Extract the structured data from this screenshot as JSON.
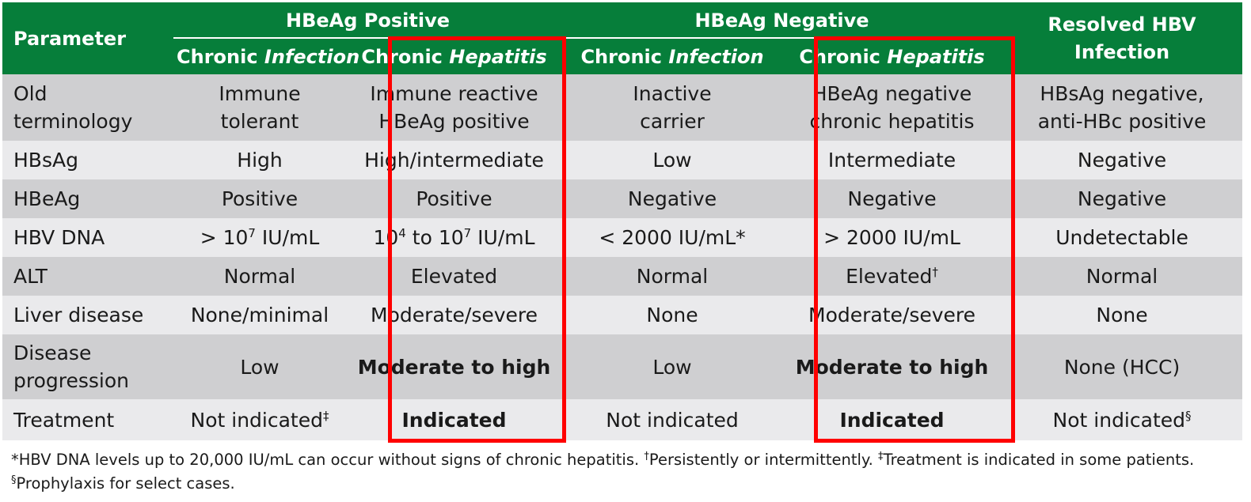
{
  "headers": {
    "parameter": "Parameter",
    "hbeag_positive": "HBeAg Positive",
    "hbeag_negative": "HBeAg Negative",
    "resolved": "Resolved HBV",
    "resolved_line2": "Infection",
    "chronic": "Chronic",
    "infection": "Infection",
    "hepatitis": "Hepatitis"
  },
  "rows": {
    "terminology": {
      "label_l1": "Old",
      "label_l2": "terminology",
      "c1_l1": "Immune",
      "c1_l2": "tolerant",
      "c2_l1": "Immune reactive",
      "c2_l2": "HBeAg positive",
      "c3_l1": "Inactive",
      "c3_l2": "carrier",
      "c4_l1": "HBeAg negative",
      "c4_l2": "chronic hepatitis",
      "c5_l1": "HBsAg negative,",
      "c5_l2": "anti-HBc positive"
    },
    "hbsag": {
      "label": "HBsAg",
      "c1": "High",
      "c2": "High/intermediate",
      "c3": "Low",
      "c4": "Intermediate",
      "c5": "Negative"
    },
    "hbeag": {
      "label": "HBeAg",
      "c1": "Positive",
      "c2": "Positive",
      "c3": "Negative",
      "c4": "Negative",
      "c5": "Negative"
    },
    "hbvdna": {
      "label": "HBV DNA",
      "c1_pre": "> 10",
      "c1_exp": "7",
      "c1_post": " IU/mL",
      "c2_a": "10",
      "c2_exp1": "4",
      "c2_b": " to 10",
      "c2_exp2": "7",
      "c2_c": " IU/mL",
      "c3": "< 2000 IU/mL*",
      "c4": "> 2000 IU/mL",
      "c5": "Undetectable"
    },
    "alt": {
      "label": "ALT",
      "c1": "Normal",
      "c2": "Elevated",
      "c3": "Normal",
      "c4": "Elevated",
      "c4_mark": "†",
      "c5": "Normal"
    },
    "liver": {
      "label": "Liver disease",
      "c1": "None/minimal",
      "c2": "Moderate/severe",
      "c3": "None",
      "c4": "Moderate/severe",
      "c5": "None"
    },
    "progression": {
      "label_l1": "Disease",
      "label_l2": "progression",
      "c1": "Low",
      "c2": "Moderate to high",
      "c3": "Low",
      "c4": "Moderate to high",
      "c5": "None (HCC)"
    },
    "treatment": {
      "label": "Treatment",
      "c1": "Not indicated",
      "c1_mark": "‡",
      "c2": "Indicated",
      "c3": "Not indicated",
      "c4": "Indicated",
      "c5": "Not indicated",
      "c5_mark": "§"
    }
  },
  "footnote": {
    "text1": "*HBV DNA levels up to 20,000 IU/mL can occur without signs of chronic hepatitis. ",
    "mark2": "†",
    "text2": "Persistently or intermittently. ",
    "mark3": "‡",
    "text3": "Treatment is indicated in some patients. ",
    "mark4": "§",
    "text4": "Prophylaxis for select cases."
  },
  "colors": {
    "header_green": "#067e3a",
    "row_dark": "#cfcfd1",
    "row_light": "#eaeaec",
    "highlight_red": "#ff0000"
  }
}
